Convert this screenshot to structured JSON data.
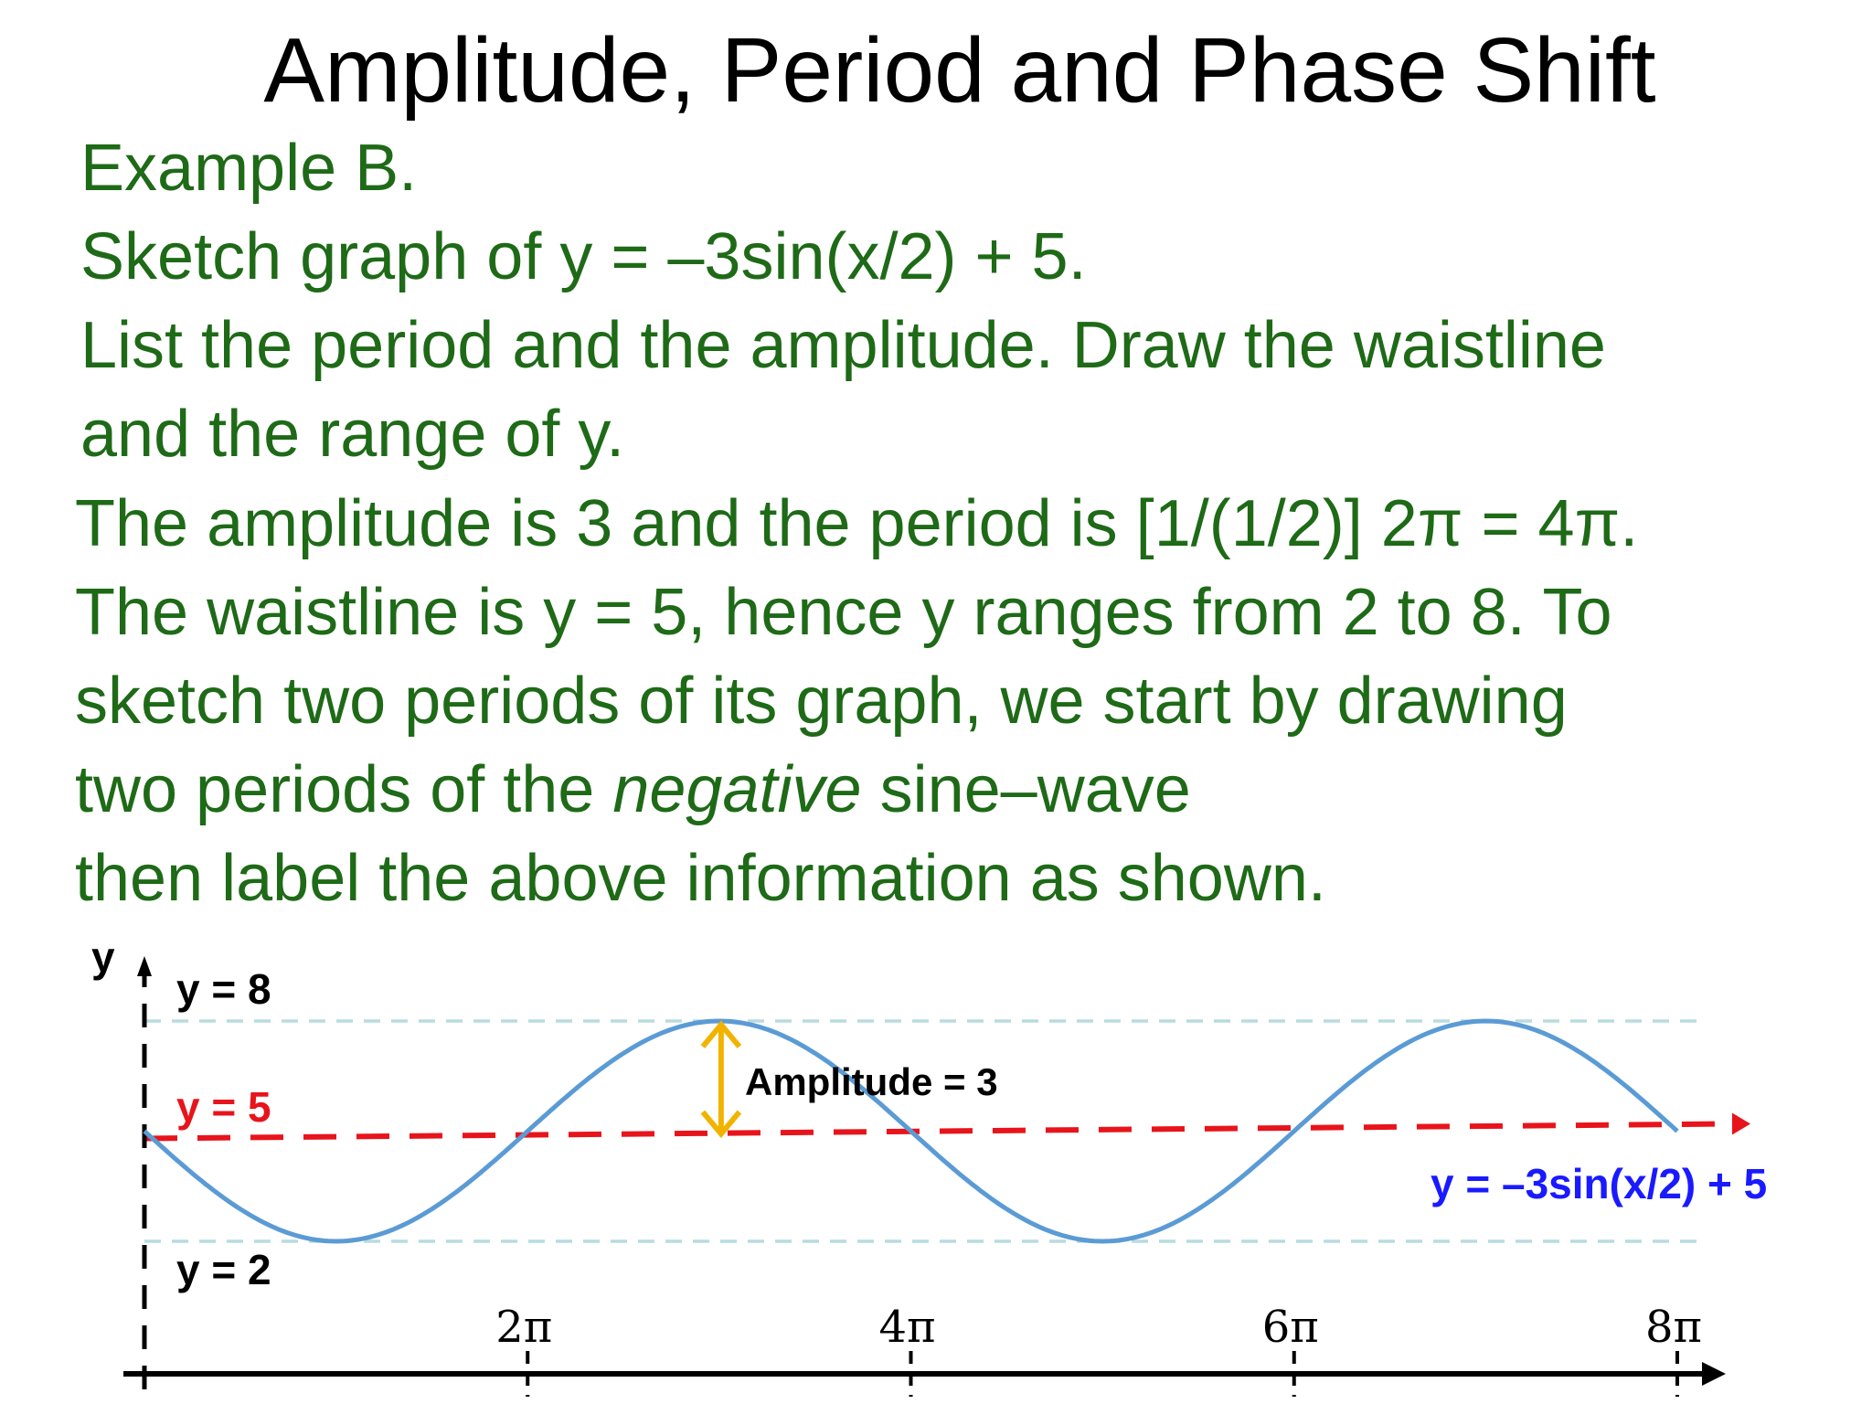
{
  "title": "Amplitude, Period and Phase Shift",
  "problem": {
    "lines": [
      "Example B.",
      "Sketch graph of y = –3sin(x/2) + 5.",
      "List the period and the amplitude. Draw the waistline",
      "and the range of y."
    ]
  },
  "solution": {
    "line1": "The amplitude is 3 and the period is [1/(1/2)] 2π = 4π.",
    "line2": "The waistline is y = 5, hence y ranges from 2 to 8. To",
    "line3": "sketch two periods of its graph, we start by drawing",
    "line4_before": "two periods of the ",
    "line4_em": "negative",
    "line4_after": " sine–wave",
    "line5": "then label the above information as shown."
  },
  "chart_data": {
    "type": "line",
    "ylabel": "y",
    "x_ticks": [
      {
        "value": 6.2832,
        "label": "2π"
      },
      {
        "value": 12.5664,
        "label": "4π"
      },
      {
        "value": 18.8496,
        "label": "6π"
      },
      {
        "value": 25.1327,
        "label": "8π"
      }
    ],
    "xlim": [
      0,
      25.1327
    ],
    "ylim": [
      2,
      8
    ],
    "series": [
      {
        "name": "y = –3sin(x/2) + 5",
        "function": "-3*sin(x/2)+5",
        "color": "#5b9bd5"
      }
    ],
    "lines": [
      {
        "label": "y = 8",
        "y": 8,
        "color": "#000000",
        "line_color": "#b8dce0"
      },
      {
        "label": "y = 5",
        "y": 5,
        "color": "#e8141b",
        "line_color": "#e8141b"
      },
      {
        "label": "y = 2",
        "y": 2,
        "color": "#000000",
        "line_color": "#b8dce0"
      }
    ],
    "annotation": {
      "label": "Amplitude = 3",
      "color": "#f0b400"
    },
    "curve_label_color": "#1a1aff"
  }
}
